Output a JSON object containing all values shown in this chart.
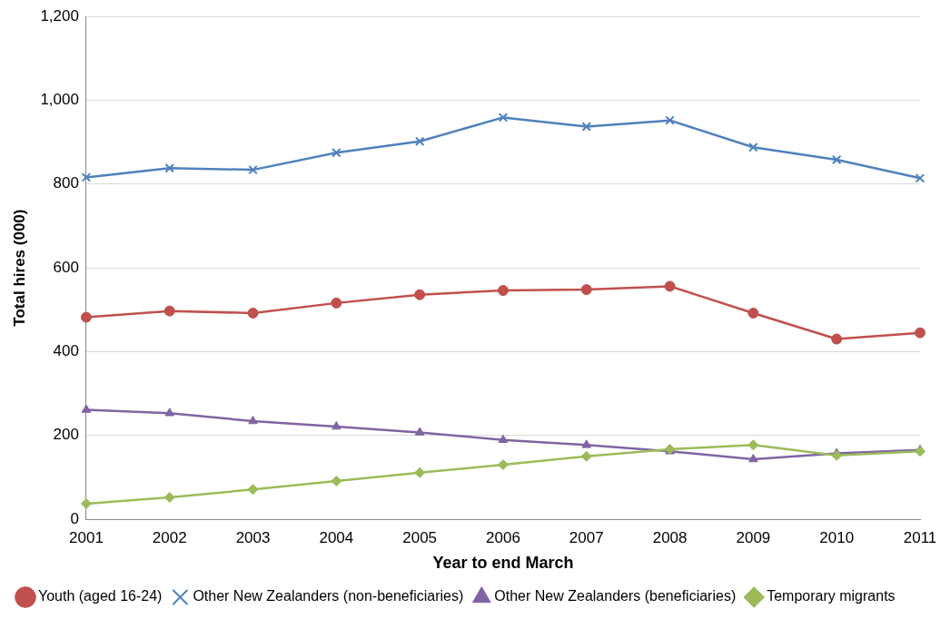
{
  "chart_data": {
    "type": "line",
    "xlabel": "Year to end March",
    "ylabel": "Total hires (000)",
    "categories": [
      "2001",
      "2002",
      "2003",
      "2004",
      "2005",
      "2006",
      "2007",
      "2008",
      "2009",
      "2010",
      "2011"
    ],
    "series": [
      {
        "name": "Youth (aged 16-24)",
        "color": "#c0504d",
        "marker": "circle",
        "values": [
          482,
          497,
          492,
          516,
          536,
          546,
          548,
          556,
          492,
          430,
          445
        ]
      },
      {
        "name": "Other New Zealanders (non-beneficiaries)",
        "color": "#4f81bd",
        "marker": "cross",
        "values": [
          816,
          838,
          834,
          875,
          902,
          959,
          937,
          952,
          888,
          858,
          814
        ]
      },
      {
        "name": "Other New Zealanders (beneficiaries)",
        "color": "#8064a2",
        "marker": "triangle",
        "values": [
          261,
          253,
          234,
          221,
          207,
          189,
          177,
          162,
          143,
          157,
          165
        ]
      },
      {
        "name": "Temporary migrants",
        "color": "#9bbb59",
        "marker": "diamond",
        "values": [
          37,
          52,
          71,
          91,
          111,
          130,
          150,
          167,
          177,
          152,
          162
        ]
      }
    ],
    "ylim": [
      0,
      1200
    ],
    "yticks": [
      {
        "value": 0,
        "label": "0"
      },
      {
        "value": 200,
        "label": "200"
      },
      {
        "value": 400,
        "label": "400"
      },
      {
        "value": 600,
        "label": "600"
      },
      {
        "value": 800,
        "label": "800"
      },
      {
        "value": 1000,
        "label": "1,000"
      },
      {
        "value": 1200,
        "label": "1,200"
      }
    ],
    "grid": "y",
    "legend": "bottom",
    "line_style": "solid"
  }
}
